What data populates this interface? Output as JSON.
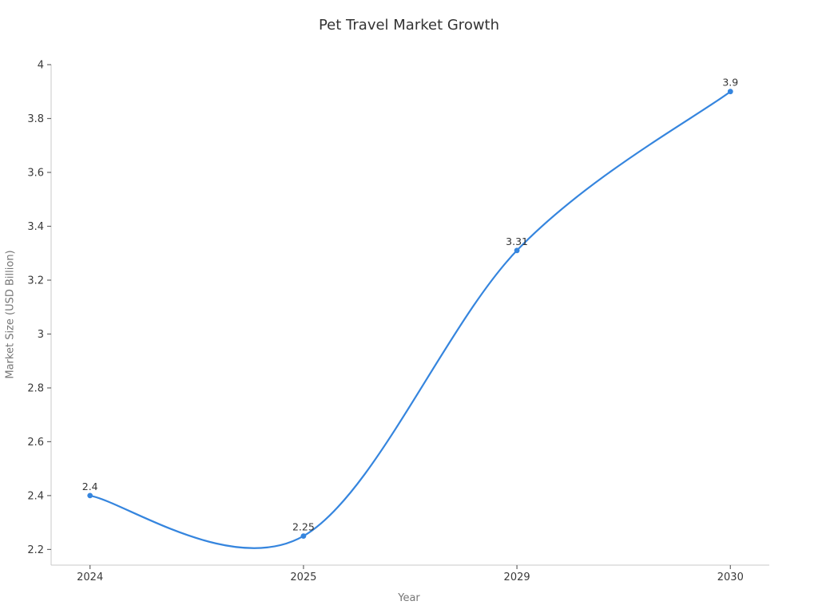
{
  "chart_data": {
    "type": "line",
    "title": "Pet Travel Market Growth",
    "xlabel": "Year",
    "ylabel": "Market Size (USD Billion)",
    "categories": [
      "2024",
      "2025",
      "2029",
      "2030"
    ],
    "series": [
      {
        "name": "Market Size",
        "values": [
          2.4,
          2.25,
          3.31,
          3.9
        ],
        "point_labels": [
          "2.4",
          "2.25",
          "3.31",
          "3.9"
        ],
        "color": "#3585de",
        "marker": "circle",
        "smooth": true
      }
    ],
    "yticks": [
      2.2,
      2.4,
      2.6,
      2.8,
      3.0,
      3.2,
      3.4,
      3.6,
      3.8,
      4.0
    ],
    "ytick_labels": [
      "2.2",
      "2.4",
      "2.6",
      "2.8",
      "3",
      "3.2",
      "3.4",
      "3.6",
      "3.8",
      "4"
    ],
    "ylim": [
      2.142,
      4.0
    ],
    "grid": false,
    "legend": "none",
    "colors": {
      "line": "#3585de",
      "spine": "#c9c9c9",
      "tick": "#666666",
      "tick_label": "#3a3a3a",
      "axis_label": "#767676",
      "title": "#333333",
      "annotation": "#333333",
      "background": "#ffffff"
    }
  }
}
